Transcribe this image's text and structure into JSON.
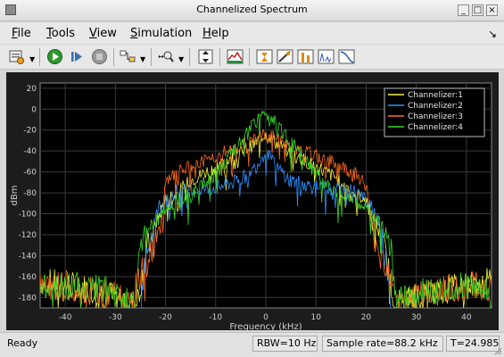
{
  "window": {
    "title": "Channelized Spectrum"
  },
  "menu": [
    {
      "label": "File",
      "mnemonic": "F",
      "rest": "ile"
    },
    {
      "label": "Tools",
      "mnemonic": "T",
      "rest": "ools"
    },
    {
      "label": "View",
      "mnemonic": "V",
      "rest": "iew"
    },
    {
      "label": "Simulation",
      "mnemonic": "S",
      "rest": "imulation"
    },
    {
      "label": "Help",
      "mnemonic": "H",
      "rest": "elp"
    }
  ],
  "toolbar": {
    "icons": [
      "settings-icon",
      "run-icon",
      "step-forward-icon",
      "stop-icon",
      "highlight-blocks-icon",
      "zoom-icon",
      "autoscale-icon",
      "spectrum-settings-icon",
      "cursor-measurements-icon",
      "channel-measurements-icon",
      "peak-finder-icon",
      "distortion-measurements-icon",
      "ccdf-icon"
    ]
  },
  "status": {
    "ready": "Ready",
    "rbw": "RBW=10 Hz",
    "sample_rate": "Sample rate=88.2 kHz",
    "time": "T=24.985"
  },
  "chart_data": {
    "type": "line",
    "xlabel": "Frequency (kHz)",
    "ylabel": "dBm",
    "xlim": [
      -45,
      45
    ],
    "ylim": [
      -190,
      25
    ],
    "xticks": [
      -40,
      -30,
      -20,
      -10,
      0,
      10,
      20,
      30,
      40
    ],
    "yticks": [
      20,
      0,
      -20,
      -40,
      -60,
      -80,
      -100,
      -120,
      -140,
      -160,
      -180
    ],
    "grid": true,
    "legend_position": "top-right",
    "background": "#000000",
    "series": [
      {
        "name": "Channelizer:1",
        "color": "#f3f33a",
        "x": [
          -45,
          -40,
          -35,
          -30,
          -26,
          -25,
          -24,
          -22,
          -20,
          -18,
          -15,
          -10,
          -5,
          -2,
          0,
          2,
          5,
          10,
          15,
          18,
          20,
          22,
          24,
          25,
          26,
          30,
          35,
          40,
          45
        ],
        "y": [
          -165,
          -168,
          -172,
          -178,
          -186,
          -170,
          -140,
          -110,
          -85,
          -82,
          -68,
          -55,
          -42,
          -32,
          -22,
          -32,
          -42,
          -55,
          -68,
          -82,
          -85,
          -110,
          -140,
          -170,
          -186,
          -178,
          -172,
          -168,
          -165
        ]
      },
      {
        "name": "Channelizer:2",
        "color": "#2f8fff",
        "x": [
          -25,
          -24,
          -22,
          -21,
          -20,
          -18,
          -15,
          -10,
          -5,
          -2,
          0,
          2,
          5,
          10,
          15,
          18,
          20,
          21,
          22,
          24,
          25
        ],
        "y": [
          -185,
          -140,
          -100,
          -90,
          -88,
          -78,
          -78,
          -75,
          -68,
          -55,
          -40,
          -55,
          -68,
          -75,
          -78,
          -78,
          -88,
          -90,
          -100,
          -140,
          -185
        ]
      },
      {
        "name": "Channelizer:3",
        "color": "#ff6a1a",
        "x": [
          -45,
          -40,
          -35,
          -30,
          -27,
          -25,
          -23,
          -21,
          -20,
          -18,
          -15,
          -10,
          -5,
          -2,
          0,
          2,
          5,
          10,
          15,
          18,
          20,
          21,
          23,
          25,
          27,
          30,
          35,
          40,
          45
        ],
        "y": [
          -170,
          -168,
          -174,
          -178,
          -186,
          -158,
          -140,
          -112,
          -72,
          -62,
          -55,
          -45,
          -35,
          -28,
          -24,
          -28,
          -35,
          -45,
          -55,
          -62,
          -72,
          -112,
          -140,
          -158,
          -186,
          -178,
          -174,
          -168,
          -170
        ]
      },
      {
        "name": "Channelizer:4",
        "color": "#38d82c",
        "x": [
          -45,
          -40,
          -35,
          -30,
          -26,
          -25,
          -23,
          -20,
          -18,
          -15,
          -10,
          -5,
          -2,
          0,
          2,
          5,
          10,
          15,
          18,
          20,
          23,
          25,
          26,
          30,
          35,
          40,
          45
        ],
        "y": [
          -172,
          -168,
          -170,
          -176,
          -186,
          -130,
          -110,
          -95,
          -88,
          -82,
          -62,
          -32,
          -12,
          -5,
          -12,
          -32,
          -62,
          -82,
          -88,
          -95,
          -110,
          -130,
          -186,
          -176,
          -170,
          -168,
          -172
        ]
      }
    ]
  }
}
